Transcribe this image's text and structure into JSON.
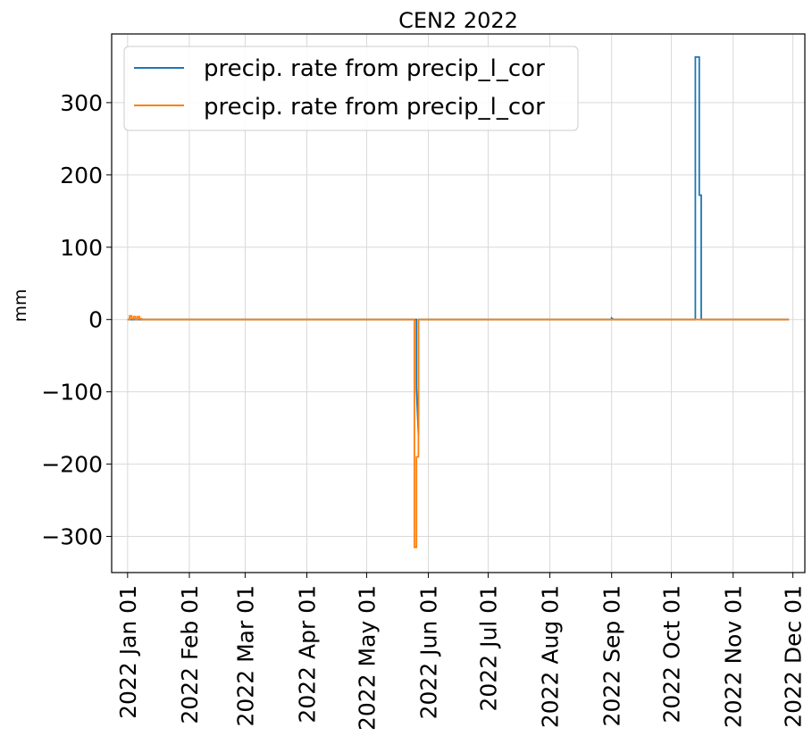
{
  "chart_data": {
    "type": "line",
    "title": "CEN2 2022",
    "xlabel": "",
    "ylabel": "mm",
    "ylim": [
      -350,
      395
    ],
    "xlim": [
      "2021-12-24",
      "2022-12-07"
    ],
    "yticks": [
      -300,
      -200,
      -100,
      0,
      100,
      200,
      300
    ],
    "ytick_labels": [
      "−300",
      "−200",
      "−100",
      "0",
      "100",
      "200",
      "300"
    ],
    "xticks": [
      "2022-01-01",
      "2022-02-01",
      "2022-03-01",
      "2022-04-01",
      "2022-05-01",
      "2022-06-01",
      "2022-07-01",
      "2022-08-01",
      "2022-09-01",
      "2022-10-01",
      "2022-11-01",
      "2022-12-01"
    ],
    "xtick_labels": [
      "2022 Jan 01",
      "2022 Feb 01",
      "2022 Mar 01",
      "2022 Apr 01",
      "2022 May 01",
      "2022 Jun 01",
      "2022 Jul 01",
      "2022 Aug 01",
      "2022 Sep 01",
      "2022 Oct 01",
      "2022 Nov 01",
      "2022 Dec 01"
    ],
    "grid": true,
    "legend_position": "upper-left",
    "series": [
      {
        "name": "precip. rate from precip_l_cor",
        "color": "#1f77b4",
        "step": true,
        "points": [
          [
            "2022-01-01",
            0
          ],
          [
            "2022-05-26",
            0
          ],
          [
            "2022-05-26",
            -95
          ],
          [
            "2022-05-27",
            -160
          ],
          [
            "2022-05-27",
            0
          ],
          [
            "2022-09-01",
            0
          ],
          [
            "2022-09-01",
            2
          ],
          [
            "2022-09-02",
            0
          ],
          [
            "2022-10-13",
            0
          ],
          [
            "2022-10-13",
            363
          ],
          [
            "2022-10-15",
            363
          ],
          [
            "2022-10-15",
            172
          ],
          [
            "2022-10-16",
            172
          ],
          [
            "2022-10-16",
            0
          ],
          [
            "2022-11-29",
            0
          ]
        ]
      },
      {
        "name": "precip. rate from precip_l_cor",
        "color": "#ff7f0e",
        "step": true,
        "points": [
          [
            "2022-01-01",
            0
          ],
          [
            "2022-01-02",
            0
          ],
          [
            "2022-01-02",
            5
          ],
          [
            "2022-01-03",
            5
          ],
          [
            "2022-01-03",
            1
          ],
          [
            "2022-01-04",
            1
          ],
          [
            "2022-01-04",
            4
          ],
          [
            "2022-01-05",
            4
          ],
          [
            "2022-01-05",
            0
          ],
          [
            "2022-01-06",
            0
          ],
          [
            "2022-01-06",
            4
          ],
          [
            "2022-01-07",
            4
          ],
          [
            "2022-01-07",
            1
          ],
          [
            "2022-01-08",
            1
          ],
          [
            "2022-01-08",
            0
          ],
          [
            "2022-05-25",
            0
          ],
          [
            "2022-05-25",
            -315
          ],
          [
            "2022-05-26",
            -315
          ],
          [
            "2022-05-26",
            -190
          ],
          [
            "2022-05-27",
            -190
          ],
          [
            "2022-05-27",
            0
          ],
          [
            "2022-11-29",
            0
          ]
        ]
      }
    ]
  }
}
